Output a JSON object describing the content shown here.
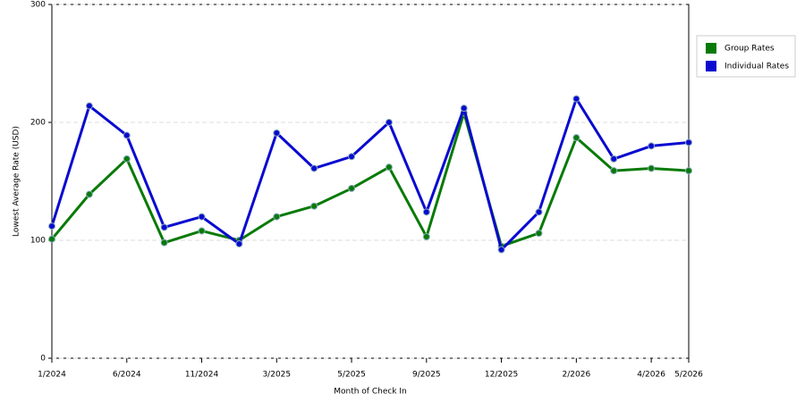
{
  "chart_data": {
    "type": "line",
    "x_label": "Month of Check In",
    "y_label": "Lowest Average Rate (USD)",
    "categories": [
      "1/2024",
      null,
      "6/2024",
      null,
      "11/2024",
      null,
      "3/2025",
      null,
      "5/2025",
      null,
      "9/2025",
      null,
      "12/2025",
      null,
      "2/2026",
      null,
      "4/2026",
      "5/2026"
    ],
    "series": [
      {
        "name": "Group Rates",
        "color": "#087a08",
        "values": [
          101,
          139,
          169,
          98,
          108,
          100,
          120,
          129,
          144,
          162,
          103,
          208,
          95,
          106,
          187,
          159,
          161,
          159
        ]
      },
      {
        "name": "Individual Rates",
        "color": "#0a0ad0",
        "values": [
          112,
          214,
          189,
          111,
          120,
          97,
          191,
          161,
          171,
          200,
          124,
          212,
          92,
          124,
          220,
          169,
          180,
          183
        ]
      }
    ],
    "ylim": [
      0,
      300
    ],
    "yticks": [
      0,
      100,
      200,
      300
    ],
    "grid": true,
    "legend": "right"
  }
}
